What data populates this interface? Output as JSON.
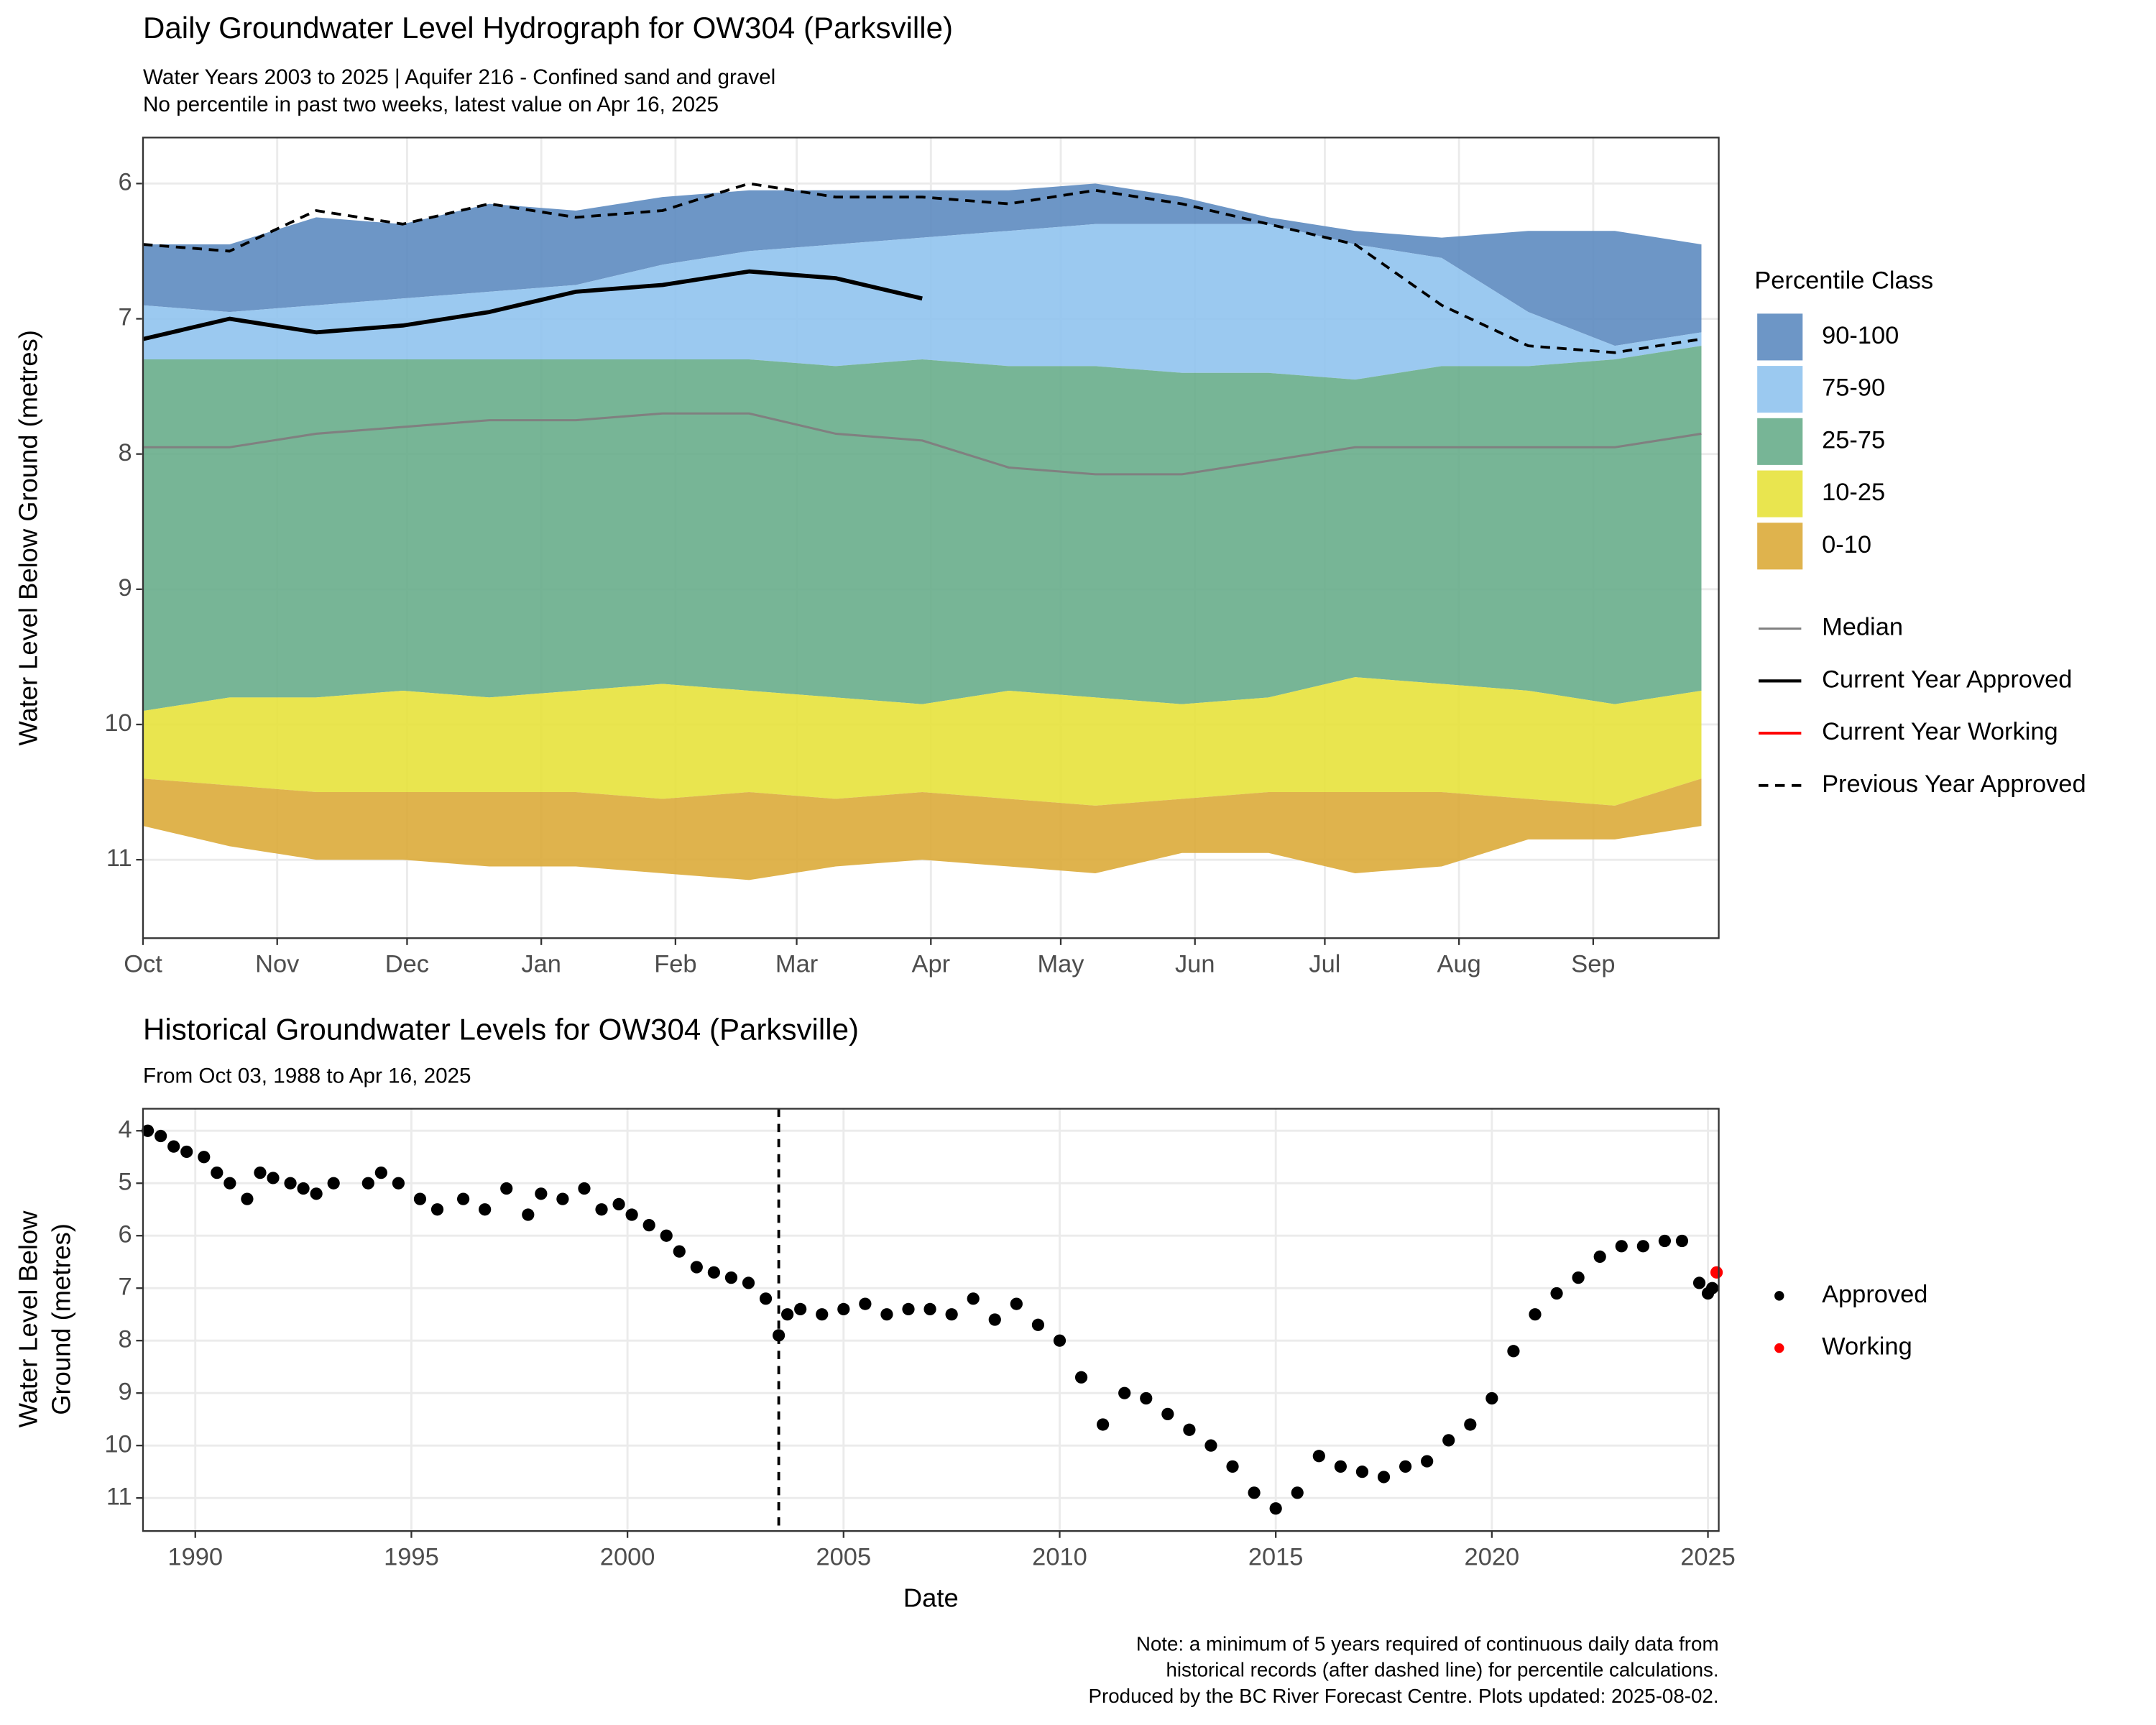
{
  "chart_data": [
    {
      "type": "area",
      "title": "Daily Groundwater Level Hydrograph for OW304 (Parksville)",
      "subtitle": [
        "Water Years 2003 to 2025 | Aquifer 216 - Confined sand and gravel",
        "No percentile in past two weeks, latest value on Apr 16, 2025"
      ],
      "y_label": "Water Level Below Ground (metres)",
      "x": [
        0,
        20,
        40,
        60,
        80,
        100,
        120,
        140,
        160,
        180,
        200,
        220,
        240,
        260,
        280,
        300,
        320,
        340,
        360
      ],
      "xlim": [
        0,
        364
      ],
      "xticks": [
        {
          "value": 0,
          "label": "Oct"
        },
        {
          "value": 31,
          "label": "Nov"
        },
        {
          "value": 61,
          "label": "Dec"
        },
        {
          "value": 92,
          "label": "Jan"
        },
        {
          "value": 123,
          "label": "Feb"
        },
        {
          "value": 151,
          "label": "Mar"
        },
        {
          "value": 182,
          "label": "Apr"
        },
        {
          "value": 212,
          "label": "May"
        },
        {
          "value": 243,
          "label": "Jun"
        },
        {
          "value": 273,
          "label": "Jul"
        },
        {
          "value": 304,
          "label": "Aug"
        },
        {
          "value": 335,
          "label": "Sep"
        }
      ],
      "ylim": [
        5.66,
        11.58
      ],
      "yticks": [
        6,
        7,
        8,
        9,
        10,
        11
      ],
      "y_reversed": true,
      "grid": true,
      "legend_title": "Percentile Class",
      "bands": [
        {
          "name": "90-100",
          "color": "#5d8bc0",
          "values_min": [
            6.45,
            6.45,
            6.25,
            6.3,
            6.15,
            6.2,
            6.1,
            6.05,
            6.05,
            6.05,
            6.05,
            6.0,
            6.1,
            6.25,
            6.35,
            6.4,
            6.35,
            6.35,
            6.45
          ],
          "values_max": [
            6.9,
            6.95,
            6.9,
            6.85,
            6.8,
            6.75,
            6.6,
            6.5,
            6.45,
            6.4,
            6.35,
            6.3,
            6.3,
            6.3,
            6.45,
            6.55,
            6.95,
            7.2,
            7.1
          ]
        },
        {
          "name": "75-90",
          "color": "#90c3ee",
          "values_min": [
            6.9,
            6.95,
            6.9,
            6.85,
            6.8,
            6.75,
            6.6,
            6.5,
            6.45,
            6.4,
            6.35,
            6.3,
            6.3,
            6.3,
            6.45,
            6.55,
            6.95,
            7.2,
            7.1
          ],
          "values_max": [
            7.3,
            7.3,
            7.3,
            7.3,
            7.3,
            7.3,
            7.3,
            7.3,
            7.35,
            7.3,
            7.35,
            7.35,
            7.4,
            7.4,
            7.45,
            7.35,
            7.35,
            7.3,
            7.2
          ]
        },
        {
          "name": "25-75",
          "color": "#68ad8b",
          "values_min": [
            7.3,
            7.3,
            7.3,
            7.3,
            7.3,
            7.3,
            7.3,
            7.3,
            7.35,
            7.3,
            7.35,
            7.35,
            7.4,
            7.4,
            7.45,
            7.35,
            7.35,
            7.3,
            7.2
          ],
          "values_max": [
            9.9,
            9.8,
            9.8,
            9.75,
            9.8,
            9.75,
            9.7,
            9.75,
            9.8,
            9.85,
            9.75,
            9.8,
            9.85,
            9.8,
            9.65,
            9.7,
            9.75,
            9.85,
            9.75
          ]
        },
        {
          "name": "10-25",
          "color": "#e7e23c",
          "values_min": [
            9.9,
            9.8,
            9.8,
            9.75,
            9.8,
            9.75,
            9.7,
            9.75,
            9.8,
            9.85,
            9.75,
            9.8,
            9.85,
            9.8,
            9.65,
            9.7,
            9.75,
            9.85,
            9.75
          ],
          "values_max": [
            10.4,
            10.45,
            10.5,
            10.5,
            10.5,
            10.5,
            10.55,
            10.5,
            10.55,
            10.5,
            10.55,
            10.6,
            10.55,
            10.5,
            10.5,
            10.5,
            10.55,
            10.6,
            10.4
          ]
        },
        {
          "name": "0-10",
          "color": "#dcab3a",
          "values_min": [
            10.4,
            10.45,
            10.5,
            10.5,
            10.5,
            10.5,
            10.55,
            10.5,
            10.55,
            10.5,
            10.55,
            10.6,
            10.55,
            10.5,
            10.5,
            10.5,
            10.55,
            10.6,
            10.4
          ],
          "values_max": [
            10.75,
            10.9,
            11.0,
            11.0,
            11.05,
            11.05,
            11.1,
            11.15,
            11.05,
            11.0,
            11.05,
            11.1,
            10.95,
            10.95,
            11.1,
            11.05,
            10.85,
            10.85,
            10.75
          ]
        }
      ],
      "series": [
        {
          "name": "Median",
          "color": "#808080",
          "width": 1.6,
          "dash": false,
          "values": [
            7.95,
            7.95,
            7.85,
            7.8,
            7.75,
            7.75,
            7.7,
            7.7,
            7.85,
            7.9,
            8.1,
            8.15,
            8.15,
            8.05,
            7.95,
            7.95,
            7.95,
            7.95,
            7.85
          ]
        },
        {
          "name": "Current Year Approved",
          "color": "#000000",
          "width": 3,
          "dash": false,
          "values": [
            7.15,
            7.0,
            7.1,
            7.05,
            6.95,
            6.8,
            6.75,
            6.65,
            6.7,
            6.85,
            null,
            null,
            null,
            null,
            null,
            null,
            null,
            null,
            null
          ]
        },
        {
          "name": "Current Year Working",
          "color": "#ff0000",
          "width": 2,
          "dash": false,
          "values": [
            null,
            null,
            null,
            null,
            null,
            null,
            null,
            null,
            null,
            null,
            null,
            null,
            null,
            null,
            null,
            null,
            null,
            null,
            null
          ]
        },
        {
          "name": "Previous Year Approved",
          "color": "#000000",
          "width": 2,
          "dash": true,
          "values": [
            6.45,
            6.5,
            6.2,
            6.3,
            6.15,
            6.25,
            6.2,
            6.0,
            6.1,
            6.1,
            6.15,
            6.05,
            6.15,
            6.3,
            6.45,
            6.9,
            7.2,
            7.25,
            7.15
          ]
        }
      ]
    },
    {
      "type": "scatter",
      "title": "Historical Groundwater Levels for OW304 (Parksville)",
      "subtitle": "From Oct 03, 1988 to Apr 16, 2025",
      "y_label": [
        "Water Level Below",
        "Ground (metres)"
      ],
      "x_label": "Date",
      "xlim": [
        1988.79,
        2025.25
      ],
      "xticks": [
        1990,
        1995,
        2000,
        2005,
        2010,
        2015,
        2020,
        2025
      ],
      "ylim": [
        3.58,
        11.63
      ],
      "yticks": [
        4,
        5,
        6,
        7,
        8,
        9,
        10,
        11
      ],
      "y_reversed": true,
      "grid": true,
      "vline": 2003.5,
      "series": [
        {
          "name": "Approved",
          "color": "#000000",
          "x": [
            1988.9,
            1989.2,
            1989.5,
            1989.8,
            1990.2,
            1990.5,
            1990.8,
            1991.2,
            1991.5,
            1991.8,
            1992.2,
            1992.5,
            1992.8,
            1993.2,
            1994.0,
            1994.3,
            1994.7,
            1995.2,
            1995.6,
            1996.2,
            1996.7,
            1997.2,
            1997.7,
            1998.0,
            1998.5,
            1999.0,
            1999.4,
            1999.8,
            2000.1,
            2000.5,
            2000.9,
            2001.2,
            2001.6,
            2002.0,
            2002.4,
            2002.8,
            2003.2,
            2003.5,
            2003.7,
            2004.0,
            2004.5,
            2005.0,
            2005.5,
            2006.0,
            2006.5,
            2007.0,
            2007.5,
            2008.0,
            2008.5,
            2009.0,
            2009.5,
            2010.0,
            2010.5,
            2011.0,
            2011.5,
            2012.0,
            2012.5,
            2013.0,
            2013.5,
            2014.0,
            2014.5,
            2015.0,
            2015.5,
            2016.0,
            2016.5,
            2017.0,
            2017.5,
            2018.0,
            2018.5,
            2019.0,
            2019.5,
            2020.0,
            2020.5,
            2021.0,
            2021.5,
            2022.0,
            2022.5,
            2023.0,
            2023.5,
            2024.0,
            2024.4,
            2024.8,
            2025.0,
            2025.1
          ],
          "values": [
            4.0,
            4.1,
            4.3,
            4.4,
            4.5,
            4.8,
            5.0,
            5.3,
            4.8,
            4.9,
            5.0,
            5.1,
            5.2,
            5.0,
            5.0,
            4.8,
            5.0,
            5.3,
            5.5,
            5.3,
            5.5,
            5.1,
            5.6,
            5.2,
            5.3,
            5.1,
            5.5,
            5.4,
            5.6,
            5.8,
            6.0,
            6.3,
            6.6,
            6.7,
            6.8,
            6.9,
            7.2,
            7.9,
            7.5,
            7.4,
            7.5,
            7.4,
            7.3,
            7.5,
            7.4,
            7.4,
            7.5,
            7.2,
            7.6,
            7.3,
            7.7,
            8.0,
            8.7,
            9.6,
            9.0,
            9.1,
            9.4,
            9.7,
            10.0,
            10.4,
            10.9,
            11.2,
            10.9,
            10.2,
            10.4,
            10.5,
            10.6,
            10.4,
            10.3,
            9.9,
            9.6,
            9.1,
            8.2,
            7.5,
            7.1,
            6.8,
            6.4,
            6.2,
            6.2,
            6.1,
            6.1,
            6.9,
            7.1,
            7.0
          ]
        },
        {
          "name": "Working",
          "color": "#ff0000",
          "x": [
            2025.2
          ],
          "values": [
            6.7
          ]
        }
      ]
    }
  ],
  "footnote": [
    "Note: a minimum of 5 years required of continuous daily data from",
    "historical records (after dashed line) for percentile calculations.",
    "Produced by the BC River Forecast Centre. Plots updated: 2025-08-02."
  ]
}
